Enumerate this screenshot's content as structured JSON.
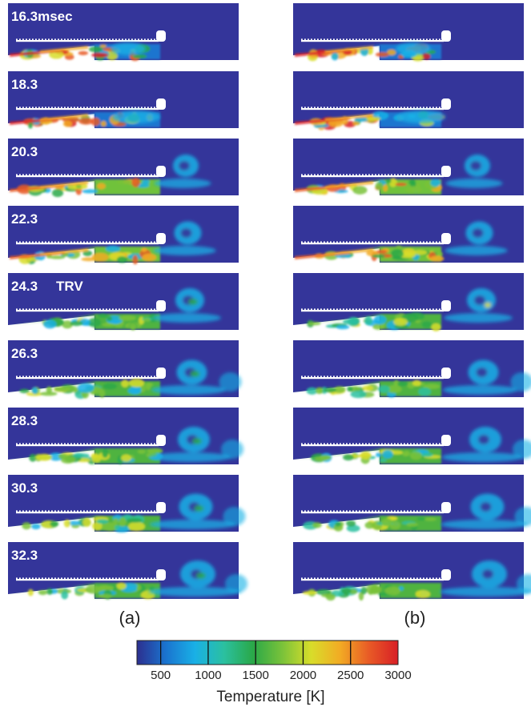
{
  "figure": {
    "time_labels": [
      "16.3msec",
      "18.3",
      "20.3",
      "22.3",
      "24.3",
      "26.3",
      "28.3",
      "30.3",
      "32.3"
    ],
    "trv_label": "TRV",
    "panel_labels": [
      "(a)",
      "(b)"
    ],
    "background_color": "#34359a",
    "colorbar": {
      "title": "Temperature [K]",
      "min": 250,
      "max": 3000,
      "ticks": [
        500,
        1000,
        1500,
        2000,
        2500,
        3000
      ],
      "tick_labels": [
        "500",
        "1000",
        "1500",
        "2000",
        "2500",
        "3000"
      ],
      "colors": [
        "#2c2f8f",
        "#1a74cf",
        "#19b0e6",
        "#2bc0a0",
        "#2aa848",
        "#79c23a",
        "#d8dd2a",
        "#f2ab24",
        "#e85a26",
        "#d81f26"
      ]
    }
  }
}
